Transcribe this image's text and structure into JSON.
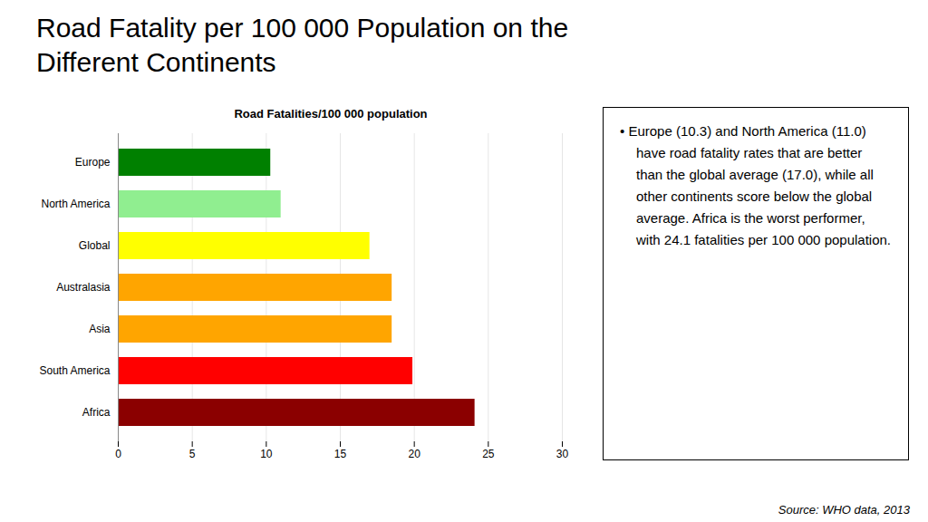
{
  "chart_data": {
    "type": "bar",
    "title": "Road Fatality per 100 000 Population on the\nDifferent Continents",
    "subtitle": "Road Fatalities/100 000 population",
    "source": "Source: WHO data, 2013",
    "annotations": [
      "• Europe (10.3) and North America (11.0) have road fatality rates that are better than the global average (17.0), while all other continents score below the global average. Africa is the worst performer, with 24.1 fatalities per 100 000 population."
    ],
    "orientation": "horizontal",
    "categories": [
      "Africa",
      "South America",
      "Asia",
      "Australasia",
      "Global",
      "North America",
      "Europe"
    ],
    "values": [
      24.1,
      19.9,
      18.5,
      18.5,
      17.0,
      11.0,
      10.3
    ],
    "colors": [
      "#8B0000",
      "#FF0000",
      "#FFA500",
      "#FFA500",
      "#FFFF00",
      "#90EE90",
      "#008000"
    ],
    "xlim": [
      0,
      30
    ],
    "xticks": [
      0,
      5,
      10,
      15,
      20,
      25,
      30
    ],
    "grid": true
  }
}
